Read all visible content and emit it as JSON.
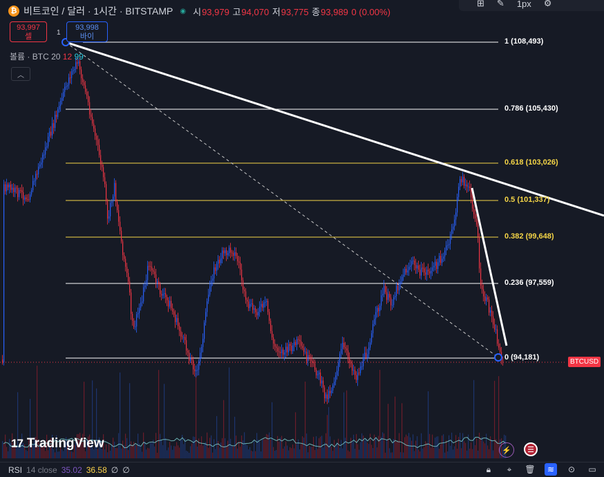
{
  "header": {
    "coin_icon": "₿",
    "symbol": "비트코인 / 달러 · 1시간 · BITSTAMP",
    "live_icon": "live-dot-icon",
    "open_label": "시",
    "open": "93,979",
    "high_label": "고",
    "high": "94,070",
    "low_label": "저",
    "low": "93,775",
    "close_label": "종",
    "close": "93,989",
    "change": "0 (0.00%)"
  },
  "trade": {
    "sell_price": "93,997",
    "sell_label": "셀",
    "quantity": "1",
    "buy_price": "93,998",
    "buy_label": "바이"
  },
  "volume_legend": {
    "label": "볼륨 · BTC",
    "period": "20",
    "v1": "12",
    "v2": "99"
  },
  "collapse_icon": "chevron-up-icon",
  "toolbar": {
    "width_value": "1px"
  },
  "fib_levels": [
    {
      "label": "1 (108,493)",
      "color": "white"
    },
    {
      "label": "0.786 (105,430)",
      "color": "white"
    },
    {
      "label": "0.618 (103,026)",
      "color": "yellow"
    },
    {
      "label": "0.5 (101,337)",
      "color": "yellow"
    },
    {
      "label": "0.382 (99,648)",
      "color": "yellow"
    },
    {
      "label": "0.236 (97,559)",
      "color": "white"
    },
    {
      "label": "0 (94,181)",
      "color": "white"
    }
  ],
  "price_tag": "BTCUSD",
  "brand": {
    "logo": "17",
    "name": "TradingView"
  },
  "rsi": {
    "name": "RSI",
    "params": "14 close",
    "value1": "35.02",
    "value2": "36.58",
    "extra1": "∅",
    "extra2": "∅"
  },
  "bottom_icons": [
    "lock-icon",
    "pin-icon",
    "trash-icon",
    "stack-icon",
    "target-icon",
    "layers-icon"
  ],
  "colors": {
    "background": "#161a25",
    "up": "#2962ff",
    "down": "#f23645",
    "fib_yellow": "#f5d547"
  }
}
